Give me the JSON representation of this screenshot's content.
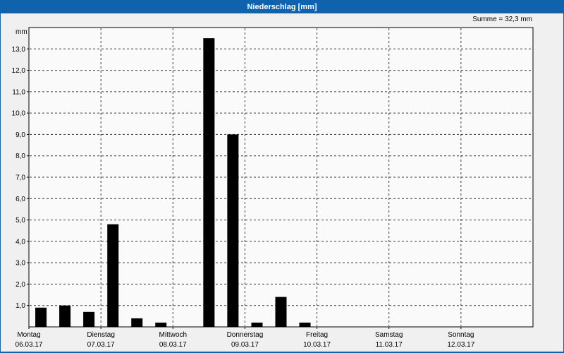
{
  "window": {
    "title": "Niederschlag [mm]"
  },
  "colors": {
    "titlebar": "#0f62ac",
    "titlebar_text": "#ffffff",
    "window_border": "#0f62ac",
    "background": "#f0f0f0",
    "plot_background": "#fafafa",
    "plot_border": "#000000",
    "grid": "#3a3a3a",
    "bar": "#000000",
    "text": "#000000"
  },
  "chart_data": {
    "type": "bar",
    "title": "Niederschlag [mm]",
    "unit_label": "mm",
    "sum_annotation": "Summe = 32,3 mm",
    "ylim": [
      0,
      14
    ],
    "ytick_values": [
      1,
      2,
      3,
      4,
      5,
      6,
      7,
      8,
      9,
      10,
      11,
      12,
      13
    ],
    "ytick_labels": [
      "1,0",
      "2,0",
      "3,0",
      "4,0",
      "5,0",
      "6,0",
      "7,0",
      "8,0",
      "9,0",
      "10,0",
      "11,0",
      "12,0",
      "13,0"
    ],
    "grid_style": "dashed",
    "legend": "none",
    "days": [
      {
        "name": "Montag",
        "date": "06.03.17"
      },
      {
        "name": "Dienstag",
        "date": "07.03.17"
      },
      {
        "name": "Mittwoch",
        "date": "08.03.17"
      },
      {
        "name": "Donnerstag",
        "date": "09.03.17"
      },
      {
        "name": "Freitag",
        "date": "10.03.17"
      },
      {
        "name": "Samstag",
        "date": "11.03.17"
      },
      {
        "name": "Sonntag",
        "date": "12.03.17"
      }
    ],
    "x_unit": "days (0 = Montag 00:00, bars are 8h interval sums)",
    "bars": [
      {
        "x": 0.167,
        "value": 0.9
      },
      {
        "x": 0.5,
        "value": 1.0
      },
      {
        "x": 0.833,
        "value": 0.7
      },
      {
        "x": 1.167,
        "value": 4.8
      },
      {
        "x": 1.5,
        "value": 0.4
      },
      {
        "x": 1.833,
        "value": 0.2
      },
      {
        "x": 2.5,
        "value": 13.5
      },
      {
        "x": 2.833,
        "value": 9.0
      },
      {
        "x": 3.167,
        "value": 0.2
      },
      {
        "x": 3.5,
        "value": 1.4
      },
      {
        "x": 3.833,
        "value": 0.2
      }
    ],
    "sum_value_mm": 32.3
  }
}
